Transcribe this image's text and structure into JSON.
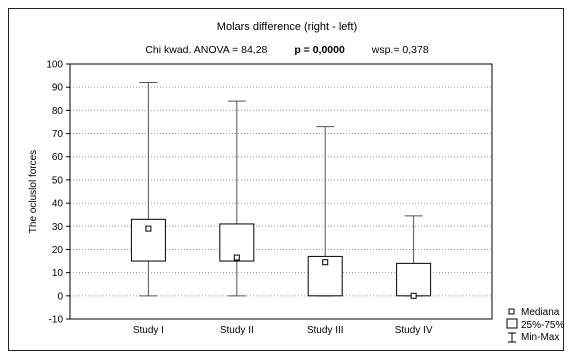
{
  "chart_data": {
    "type": "boxplot",
    "title": "Molars difference (right - left)",
    "subtitle": {
      "left": "Chi kwad. ANOVA = 84,28",
      "middle": "p = 0,0000",
      "right": "wsp.= 0,378"
    },
    "ylabel": "The ocluslol forces",
    "xlabel": "",
    "ylim": [
      -10,
      100
    ],
    "yticks": [
      -10,
      0,
      10,
      20,
      30,
      40,
      50,
      60,
      70,
      80,
      90,
      100
    ],
    "grid": true,
    "categories": [
      "Study I",
      "Study II",
      "Study III",
      "Study IV"
    ],
    "series": [
      {
        "category": "Study I",
        "min": 0,
        "q1": 15,
        "median": 29,
        "q3": 33,
        "max": 92
      },
      {
        "category": "Study II",
        "min": 0,
        "q1": 15,
        "median": 16.5,
        "q3": 31,
        "max": 84
      },
      {
        "category": "Study III",
        "min": 0,
        "q1": 0,
        "median": 14.5,
        "q3": 17,
        "max": 73
      },
      {
        "category": "Study IV",
        "min": 0,
        "q1": 0,
        "median": 0,
        "q3": 14,
        "max": 34.5
      }
    ],
    "legend": {
      "position": "bottom-right",
      "items": [
        "Mediana",
        "25%-75%",
        "Min-Max"
      ]
    }
  }
}
